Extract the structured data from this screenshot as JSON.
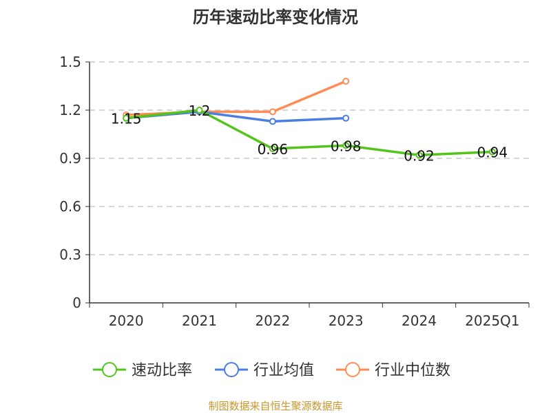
{
  "chart_data": {
    "type": "line",
    "title": "历年速动比率变化情况",
    "categories": [
      "2020",
      "2021",
      "2022",
      "2023",
      "2024",
      "2025Q1"
    ],
    "ylim": [
      0,
      1.5
    ],
    "yticks": [
      0,
      0.3,
      0.6,
      0.9,
      1.2,
      1.5
    ],
    "ytick_labels": [
      "0",
      "0.3",
      "0.6",
      "0.9",
      "1.2",
      "1.5"
    ],
    "grid": true,
    "legend_position": "bottom",
    "series": [
      {
        "name": "速动比率",
        "color": "#52c41a",
        "values": [
          1.15,
          1.2,
          0.96,
          0.98,
          0.92,
          0.94
        ],
        "labels": [
          "1.15",
          "1.2",
          "0.96",
          "0.98",
          "0.92",
          "0.94"
        ]
      },
      {
        "name": "行业均值",
        "color": "#4a7ee0",
        "values": [
          1.15,
          1.19,
          1.13,
          1.15,
          null,
          null
        ]
      },
      {
        "name": "行业中位数",
        "color": "#ff8c55",
        "values": [
          1.17,
          1.19,
          1.19,
          1.38,
          null,
          null
        ]
      }
    ],
    "source": "制图数据来自恒生聚源数据库"
  }
}
